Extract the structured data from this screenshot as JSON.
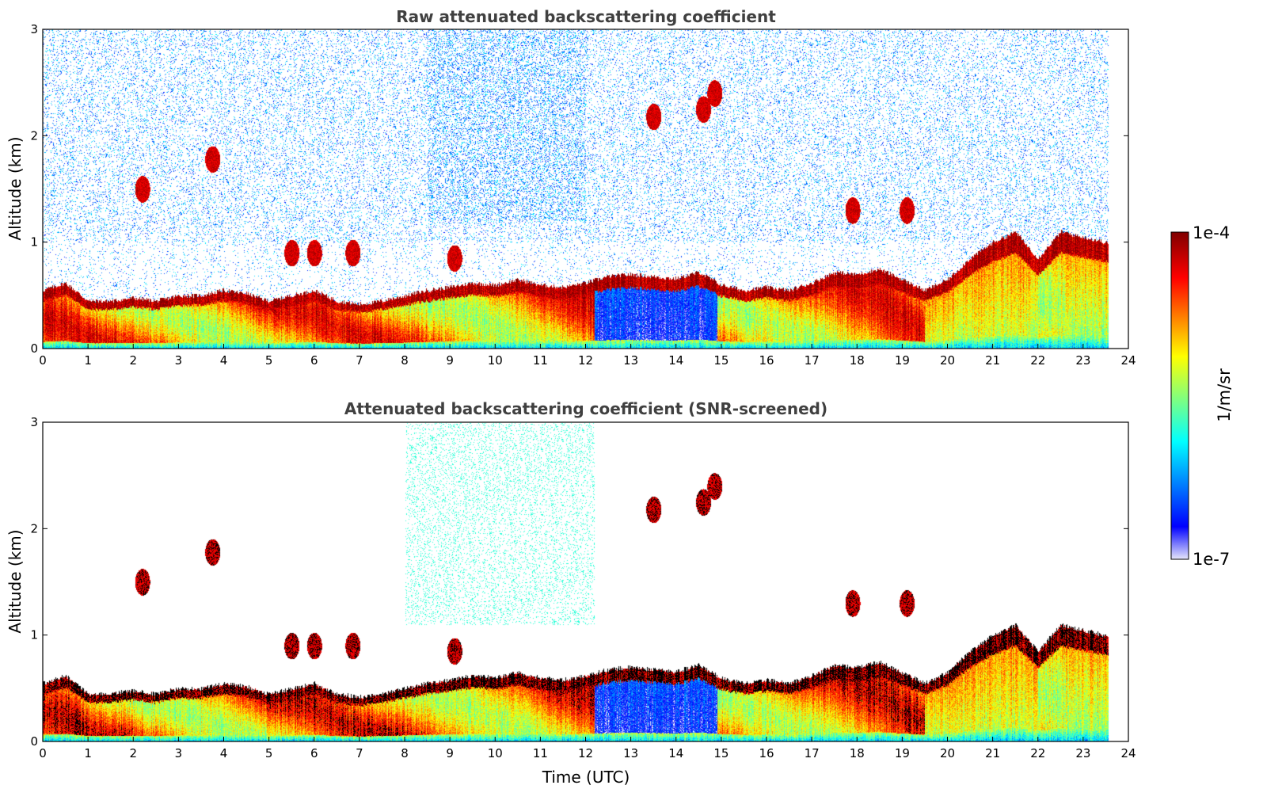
{
  "chart_data": [
    {
      "type": "heatmap",
      "title": "Raw attenuated backscattering coefficient",
      "xlabel": "",
      "ylabel": "Altitude (km)",
      "xlim": [
        0,
        24
      ],
      "ylim": [
        0,
        3
      ],
      "xticks": [
        0,
        1,
        2,
        3,
        4,
        5,
        6,
        7,
        8,
        9,
        10,
        11,
        12,
        13,
        14,
        15,
        16,
        17,
        18,
        19,
        20,
        21,
        22,
        23,
        24
      ],
      "yticks": [
        0,
        1,
        2
      ],
      "screened": false,
      "layer_top_km": [
        [
          0,
          0.55
        ],
        [
          0.5,
          0.62
        ],
        [
          1,
          0.45
        ],
        [
          1.5,
          0.45
        ],
        [
          2,
          0.48
        ],
        [
          2.5,
          0.45
        ],
        [
          3,
          0.5
        ],
        [
          3.5,
          0.5
        ],
        [
          4,
          0.55
        ],
        [
          4.5,
          0.52
        ],
        [
          5,
          0.45
        ],
        [
          5.5,
          0.5
        ],
        [
          6,
          0.55
        ],
        [
          6.5,
          0.45
        ],
        [
          7,
          0.42
        ],
        [
          7.5,
          0.45
        ],
        [
          8,
          0.5
        ],
        [
          8.5,
          0.55
        ],
        [
          9,
          0.58
        ],
        [
          9.5,
          0.62
        ],
        [
          10,
          0.6
        ],
        [
          10.5,
          0.65
        ],
        [
          11,
          0.6
        ],
        [
          11.5,
          0.58
        ],
        [
          12,
          0.62
        ],
        [
          12.5,
          0.68
        ],
        [
          13,
          0.7
        ],
        [
          13.5,
          0.68
        ],
        [
          14,
          0.66
        ],
        [
          14.5,
          0.72
        ],
        [
          15,
          0.6
        ],
        [
          15.5,
          0.55
        ],
        [
          16,
          0.58
        ],
        [
          16.5,
          0.55
        ],
        [
          17,
          0.62
        ],
        [
          17.5,
          0.72
        ],
        [
          18,
          0.7
        ],
        [
          18.5,
          0.75
        ],
        [
          19,
          0.65
        ],
        [
          19.5,
          0.55
        ],
        [
          20,
          0.65
        ],
        [
          20.5,
          0.85
        ],
        [
          21,
          1.0
        ],
        [
          21.5,
          1.1
        ],
        [
          22,
          0.85
        ],
        [
          22.5,
          1.1
        ],
        [
          23,
          1.05
        ],
        [
          23.5,
          1.0
        ]
      ],
      "elevated_features": [
        {
          "t": 2.2,
          "alt_km": 1.5
        },
        {
          "t": 3.75,
          "alt_km": 1.78
        },
        {
          "t": 5.5,
          "alt_km": 0.9
        },
        {
          "t": 6.0,
          "alt_km": 0.9
        },
        {
          "t": 6.85,
          "alt_km": 0.9
        },
        {
          "t": 9.1,
          "alt_km": 0.85
        },
        {
          "t": 13.5,
          "alt_km": 2.18
        },
        {
          "t": 14.6,
          "alt_km": 2.25
        },
        {
          "t": 14.85,
          "alt_km": 2.4
        },
        {
          "t": 17.9,
          "alt_km": 1.3
        },
        {
          "t": 19.1,
          "alt_km": 1.3
        }
      ]
    },
    {
      "type": "heatmap",
      "title": "Attenuated backscattering coefficient (SNR-screened)",
      "xlabel": "Time (UTC)",
      "ylabel": "Altitude (km)",
      "xlim": [
        0,
        24
      ],
      "ylim": [
        0,
        3
      ],
      "xticks": [
        0,
        1,
        2,
        3,
        4,
        5,
        6,
        7,
        8,
        9,
        10,
        11,
        12,
        13,
        14,
        15,
        16,
        17,
        18,
        19,
        20,
        21,
        22,
        23,
        24
      ],
      "yticks": [
        0,
        1,
        2,
        3
      ],
      "screened": true
    }
  ],
  "colorbar": {
    "label": "1/m/sr",
    "max_label": "1e-4",
    "min_label": "1e-7",
    "colormap": "jet",
    "colors": [
      "#e6e6fa",
      "#0000ff",
      "#00ffff",
      "#ffff00",
      "#ff0000",
      "#800000"
    ]
  }
}
